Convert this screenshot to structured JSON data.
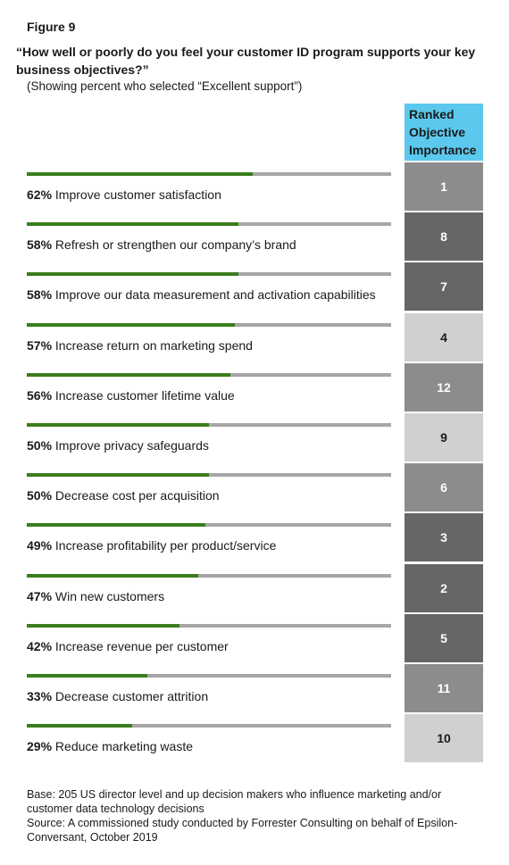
{
  "figure_label": "Figure 9",
  "question": "“How well or poorly do you feel your customer ID program supports your key business objectives?”",
  "subtitle": "(Showing percent who selected “Excellent support”)",
  "rank_header": "Ranked Objective Importance",
  "footnote": {
    "base": "Base: 205 US director level and up decision makers who influence marketing and/or customer data technology decisions",
    "source": "Source: A commissioned study conducted by Forrester Consulting on behalf of Epsilon-Conversant, October 2019"
  },
  "colors": {
    "bar_fill": "#3a7d1c",
    "bar_track": "#a6a6a6",
    "header_bg": "#5bc8ed",
    "rank_dark": "#666666",
    "rank_mid": "#8c8c8c",
    "rank_light": "#d0d0d0"
  },
  "chart_data": {
    "type": "bar",
    "orientation": "horizontal",
    "xlim": [
      0,
      100
    ],
    "categories": [
      "Improve customer satisfaction",
      "Refresh or strengthen our company’s brand",
      "Improve our data measurement and activation capabilities",
      "Increase return on marketing spend",
      "Increase customer lifetime value",
      "Improve privacy safeguards",
      "Decrease cost per acquisition",
      "Increase profitability per product/service",
      "Win new customers",
      "Increase revenue per customer",
      "Decrease customer attrition",
      "Reduce marketing waste"
    ],
    "values": [
      62,
      58,
      58,
      57,
      56,
      50,
      50,
      49,
      47,
      42,
      33,
      29
    ],
    "value_labels": [
      "62%",
      "58%",
      "58%",
      "57%",
      "56%",
      "50%",
      "50%",
      "49%",
      "47%",
      "42%",
      "33%",
      "29%"
    ],
    "ranked_importance": [
      "1",
      "8",
      "7",
      "4",
      "12",
      "9",
      "6",
      "3",
      "2",
      "5",
      "11",
      "10"
    ],
    "rank_shade": [
      "mid",
      "dark",
      "dark",
      "light",
      "mid",
      "light",
      "mid",
      "dark",
      "dark",
      "dark",
      "mid",
      "light"
    ]
  }
}
